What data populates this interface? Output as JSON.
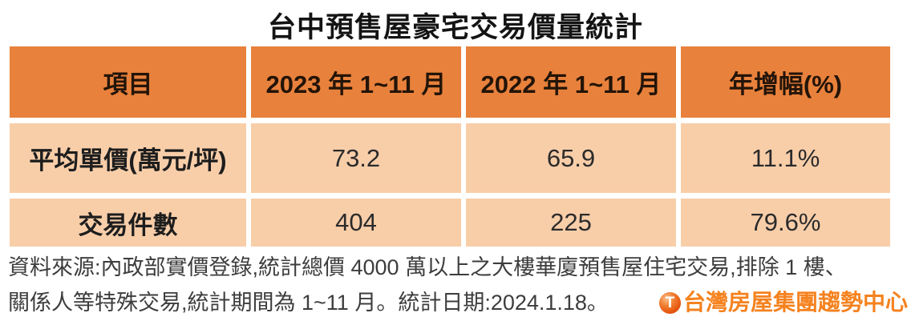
{
  "title": "台中預售屋豪宅交易價量統計",
  "table": {
    "headers": [
      "項目",
      "2023 年 1~11 月",
      "2022 年 1~11 月",
      "年增幅(%)"
    ],
    "rows": [
      {
        "label": "平均單價(萬元/坪)",
        "values": [
          "73.2",
          "65.9",
          "11.1%"
        ]
      },
      {
        "label": "交易件數",
        "values": [
          "404",
          "225",
          "79.6%"
        ]
      }
    ]
  },
  "footer": {
    "line1": "資料來源:內政部實價登錄,統計總價 4000 萬以上之大樓華廈預售屋住宅交易,排除 1 樓、",
    "line2": "關係人等特殊交易,統計期間為 1~11 月。統計日期:2024.1.18。"
  },
  "logo": {
    "icon_letter": "T",
    "text": "台灣房屋集團趨勢中心"
  },
  "colors": {
    "header_bg": "#E8813C",
    "row_bg": "#F8CEA9",
    "logo_orange": "#F5821F",
    "title_text": "#141414",
    "footer_text": "#3d3d3d"
  },
  "chart_data": {
    "type": "table",
    "title": "台中預售屋豪宅交易價量統計",
    "columns": [
      "項目",
      "2023 年 1~11 月",
      "2022 年 1~11 月",
      "年增幅(%)"
    ],
    "rows": [
      [
        "平均單價(萬元/坪)",
        "73.2",
        "65.9",
        "11.1%"
      ],
      [
        "交易件數",
        "404",
        "225",
        "79.6%"
      ]
    ],
    "source_note": "資料來源:內政部實價登錄,統計總價 4000 萬以上之大樓華廈預售屋住宅交易,排除 1 樓、關係人等特殊交易,統計期間為 1~11 月。統計日期:2024.1.18。",
    "publisher": "台灣房屋集團趨勢中心"
  }
}
